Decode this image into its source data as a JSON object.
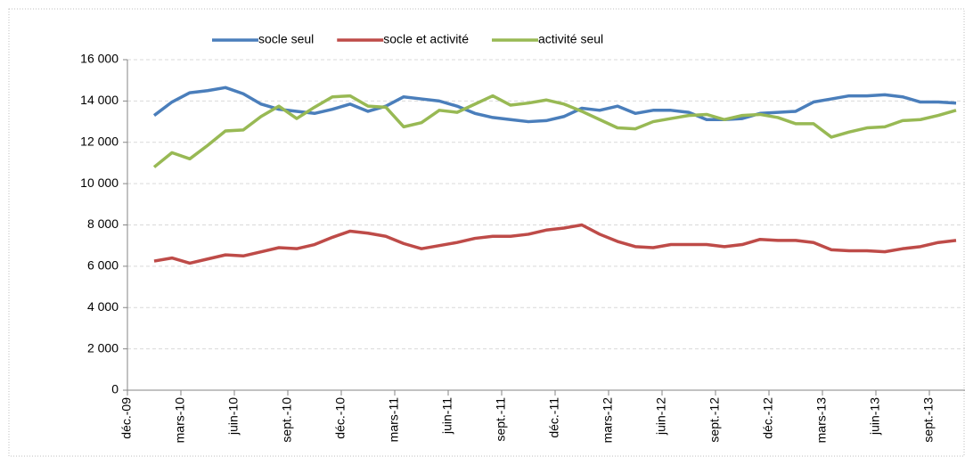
{
  "chart_data": {
    "type": "line",
    "categories": [
      "déc.-09",
      null,
      null,
      "mars-10",
      null,
      null,
      "juin-10",
      null,
      null,
      "sept.-10",
      null,
      null,
      "déc.-10",
      null,
      null,
      "mars-11",
      null,
      null,
      "juin-11",
      null,
      null,
      "sept.-11",
      null,
      null,
      "déc.-11",
      null,
      null,
      "mars-12",
      null,
      null,
      "juin-12",
      null,
      null,
      "sept.-12",
      null,
      null,
      "déc.-12",
      null,
      null,
      "mars-13",
      null,
      null,
      "juin-13",
      null,
      null,
      "sept.-13",
      null
    ],
    "series": [
      {
        "name": "socle seul",
        "color": "#4a7ebb",
        "values": [
          null,
          13300,
          13950,
          14400,
          14500,
          14650,
          14350,
          13850,
          13600,
          13500,
          13400,
          13600,
          13850,
          13500,
          13750,
          14200,
          14100,
          14000,
          13750,
          13400,
          13200,
          13100,
          13000,
          13050,
          13250,
          13650,
          13550,
          13750,
          13400,
          13550,
          13550,
          13450,
          13100,
          13100,
          13150,
          13400,
          13450,
          13500,
          13950,
          14100,
          14250,
          14250,
          14300,
          14200,
          13950,
          13950,
          13900
        ]
      },
      {
        "name": "socle et activité",
        "color": "#be4b48",
        "values": [
          null,
          6250,
          6400,
          6150,
          6350,
          6550,
          6500,
          6700,
          6900,
          6850,
          7050,
          7400,
          7700,
          7600,
          7450,
          7100,
          6850,
          7000,
          7150,
          7350,
          7450,
          7450,
          7550,
          7750,
          7850,
          8000,
          7550,
          7200,
          6950,
          6900,
          7050,
          7050,
          7050,
          6950,
          7050,
          7300,
          7250,
          7250,
          7150,
          6800,
          6750,
          6750,
          6700,
          6850,
          6950,
          7150,
          7250
        ]
      },
      {
        "name": "activité seul",
        "color": "#98b954",
        "values": [
          null,
          10800,
          11500,
          11200,
          11850,
          12550,
          12600,
          13250,
          13750,
          13150,
          13700,
          14200,
          14250,
          13750,
          13700,
          12750,
          12950,
          13550,
          13450,
          13850,
          14250,
          13800,
          13900,
          14050,
          13850,
          13500,
          13100,
          12700,
          12650,
          13000,
          13150,
          13300,
          13350,
          13100,
          13300,
          13350,
          13200,
          12900,
          12900,
          12250,
          12500,
          12700,
          12750,
          13050,
          13100,
          13300,
          13550
        ]
      }
    ],
    "ylim": [
      0,
      16000
    ],
    "yticks": [
      0,
      {
        "value": 2000,
        "label": "2 000"
      },
      {
        "value": 4000,
        "label": "4 000"
      },
      {
        "value": 6000,
        "label": "6 000"
      },
      {
        "value": 8000,
        "label": "8 000"
      },
      {
        "value": 10000,
        "label": "10 000"
      },
      {
        "value": 12000,
        "label": "12 000"
      },
      {
        "value": 14000,
        "label": "14 000"
      },
      {
        "value": 16000,
        "label": "16 000"
      }
    ],
    "grid": true,
    "legend": "top"
  }
}
